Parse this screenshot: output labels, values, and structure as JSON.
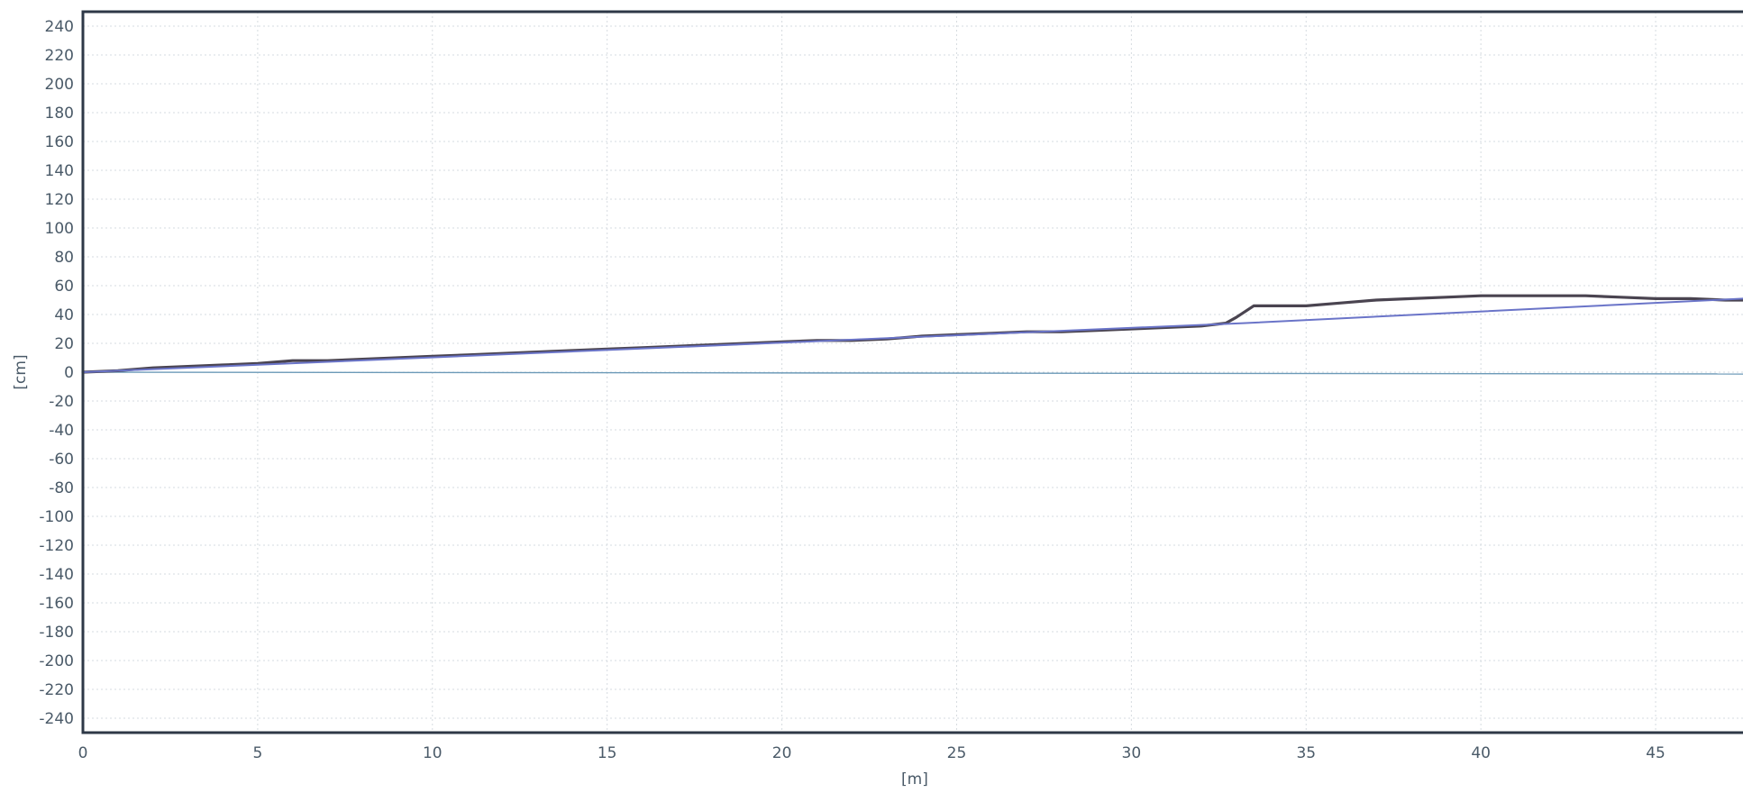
{
  "chart_data": {
    "type": "line",
    "title": "",
    "xlabel": "[m]",
    "ylabel": "[cm]",
    "xlim": [
      0,
      47.5
    ],
    "ylim": [
      -250,
      250
    ],
    "x_ticks": [
      0,
      5,
      10,
      15,
      20,
      25,
      30,
      35,
      40,
      45
    ],
    "y_ticks": [
      240,
      220,
      200,
      180,
      160,
      140,
      120,
      100,
      80,
      60,
      40,
      20,
      0,
      -20,
      -40,
      -60,
      -80,
      -100,
      -120,
      -140,
      -160,
      -180,
      -200,
      -220,
      -240
    ],
    "grid": true,
    "legend": "none",
    "series": [
      {
        "color": "#4a4450",
        "x": [
          0,
          1,
          2,
          3,
          4,
          5,
          6,
          7,
          8,
          9,
          10,
          11,
          12,
          13,
          14,
          15,
          16,
          17,
          18,
          19,
          20,
          21,
          22,
          23,
          24,
          25,
          26,
          27,
          28,
          29,
          30,
          31,
          32,
          32.7,
          33,
          33.5,
          34,
          35,
          36,
          37,
          38,
          39,
          40,
          41,
          42,
          43,
          44,
          45,
          46,
          47,
          47.5
        ],
        "y": [
          0,
          1,
          3,
          4,
          5,
          6,
          8,
          8,
          9,
          10,
          11,
          12,
          13,
          14,
          15,
          16,
          17,
          18,
          19,
          20,
          21,
          22,
          22,
          23,
          25,
          26,
          27,
          28,
          28,
          29,
          30,
          31,
          32,
          34,
          38,
          46,
          46,
          46,
          48,
          50,
          51,
          52,
          53,
          53,
          53,
          53,
          52,
          51,
          51,
          50,
          50
        ]
      },
      {
        "color": "#6a74c8",
        "x": [
          0,
          33.2,
          47.5
        ],
        "y": [
          0,
          34,
          51
        ]
      }
    ]
  }
}
